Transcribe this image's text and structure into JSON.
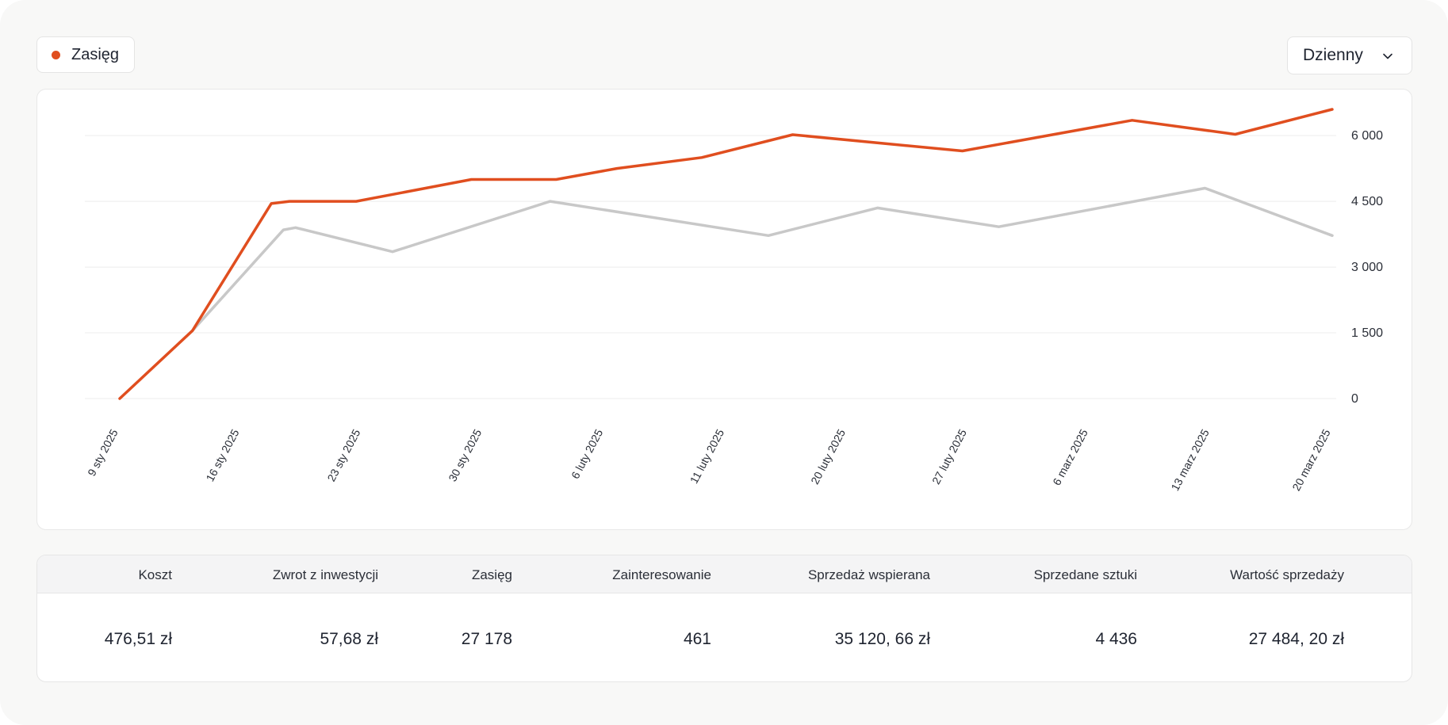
{
  "legend": {
    "label": "Zasięg",
    "color": "#e04e1f",
    "icon": "legend-dot-icon"
  },
  "period_select": {
    "value": "Dzienny",
    "icon": "chevron-down-icon"
  },
  "chart_data": {
    "type": "line",
    "x": [
      "9 sty 2025",
      "16 sty 2025",
      "23 sty 2025",
      "30 sty 2025",
      "6 luty 2025",
      "11 luty 2025",
      "20 luty 2025",
      "27 luty 2025",
      "6 marz 2025",
      "13 marz 2025",
      "20 marz 2025"
    ],
    "y_ticks": [
      "0",
      "1 500",
      "3 000",
      "4 500",
      "6 000"
    ],
    "ylim": [
      0,
      6500
    ],
    "grid": true,
    "y_axis_position": "right",
    "series": [
      {
        "name": "Zasięg",
        "color": "#e04e1f",
        "points": [
          [
            0,
            0
          ],
          [
            0.6,
            1550
          ],
          [
            1.25,
            4450
          ],
          [
            1.4,
            4500
          ],
          [
            1.95,
            4500
          ],
          [
            2.9,
            5000
          ],
          [
            3.6,
            5000
          ],
          [
            4.1,
            5250
          ],
          [
            4.8,
            5500
          ],
          [
            5.55,
            6020
          ],
          [
            6.95,
            5650
          ],
          [
            8.35,
            6350
          ],
          [
            9.2,
            6030
          ],
          [
            10,
            6600
          ]
        ]
      },
      {
        "color": "#c8c8c8",
        "points": [
          [
            0.6,
            1550
          ],
          [
            1.35,
            3850
          ],
          [
            1.45,
            3900
          ],
          [
            2.25,
            3350
          ],
          [
            3.55,
            4500
          ],
          [
            5.35,
            3720
          ],
          [
            6.25,
            4350
          ],
          [
            7.25,
            3920
          ],
          [
            8.95,
            4800
          ],
          [
            10,
            3720
          ]
        ]
      }
    ]
  },
  "stats": {
    "headers": [
      "Koszt",
      "Zwrot z inwestycji",
      "Zasięg",
      "Zainteresowanie",
      "Sprzedaż wspierana",
      "Sprzedane sztuki",
      "Wartość sprzedaży"
    ],
    "values": [
      "476,51 zł",
      "57,68 zł",
      "27 178",
      "461",
      "35 120, 66 zł",
      "4 436",
      "27 484, 20 zł"
    ]
  }
}
